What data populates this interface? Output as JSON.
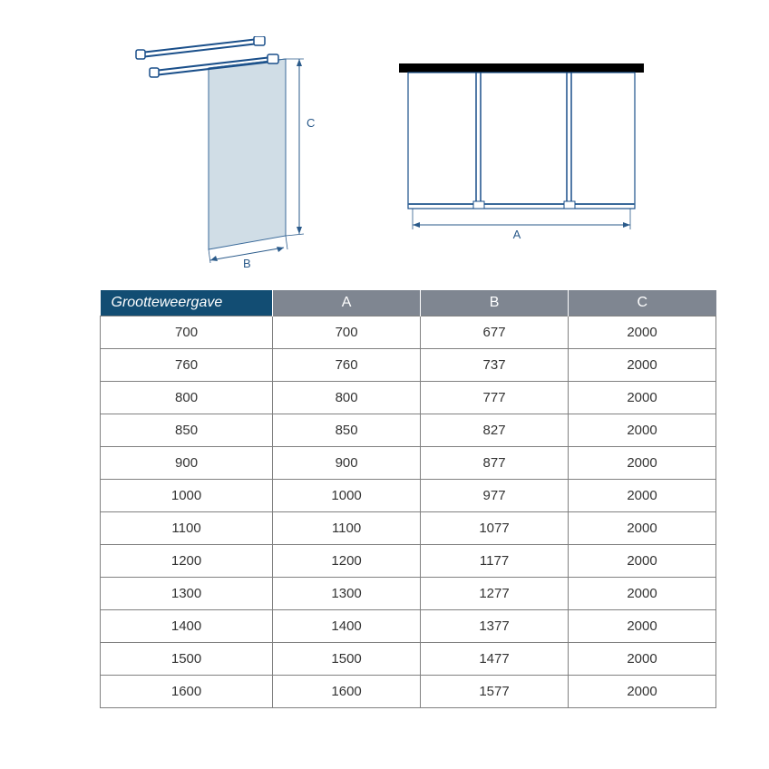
{
  "diagram": {
    "label_A": "A",
    "label_B": "B",
    "label_C": "C",
    "stroke": "#1a4f8a",
    "glass_fill": "#d0dde6",
    "glass_stroke": "#3a6a9a",
    "dim_color": "#2a5a8a",
    "black": "#000000"
  },
  "table": {
    "header_first_bg": "#124d73",
    "header_rest_bg": "#7f8691",
    "header_text": "#ffffff",
    "cell_text": "#333333",
    "border": "#808080",
    "columns": [
      "Grootteweergave",
      "A",
      "B",
      "C"
    ],
    "rows": [
      [
        "700",
        "700",
        "677",
        "2000"
      ],
      [
        "760",
        "760",
        "737",
        "2000"
      ],
      [
        "800",
        "800",
        "777",
        "2000"
      ],
      [
        "850",
        "850",
        "827",
        "2000"
      ],
      [
        "900",
        "900",
        "877",
        "2000"
      ],
      [
        "1000",
        "1000",
        "977",
        "2000"
      ],
      [
        "1100",
        "1100",
        "1077",
        "2000"
      ],
      [
        "1200",
        "1200",
        "1177",
        "2000"
      ],
      [
        "1300",
        "1300",
        "1277",
        "2000"
      ],
      [
        "1400",
        "1400",
        "1377",
        "2000"
      ],
      [
        "1500",
        "1500",
        "1477",
        "2000"
      ],
      [
        "1600",
        "1600",
        "1577",
        "2000"
      ]
    ]
  }
}
